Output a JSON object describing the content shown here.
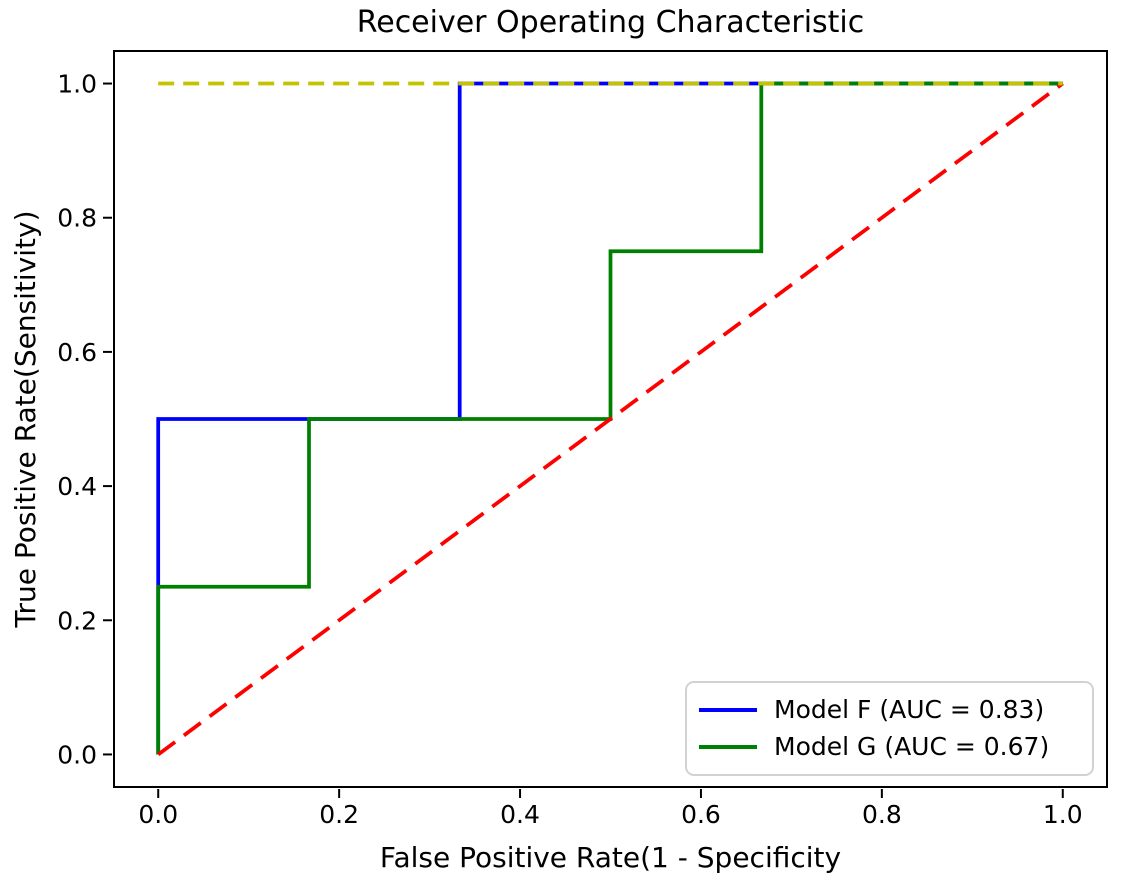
{
  "chart_data": {
    "type": "line",
    "title": "Receiver Operating Characteristic",
    "xlabel": "False Positive Rate(1 - Specificity",
    "ylabel": "True Positive Rate(Sensitivity)",
    "xlim": [
      -0.05,
      1.05
    ],
    "ylim": [
      -0.05,
      1.05
    ],
    "grid": false,
    "x_tick_values": [
      0.0,
      0.2,
      0.4,
      0.6,
      0.8,
      1.0
    ],
    "x_tick_labels": [
      "0.0",
      "0.2",
      "0.4",
      "0.6",
      "0.8",
      "1.0"
    ],
    "y_tick_values": [
      0.0,
      0.2,
      0.4,
      0.6,
      0.8,
      1.0
    ],
    "y_tick_labels": [
      "0.0",
      "0.2",
      "0.4",
      "0.6",
      "0.8",
      "1.0"
    ],
    "series": [
      {
        "id": "model-f-roc-curve",
        "name": "Model F (AUC = 0.83)",
        "color": "#0000ff",
        "linestyle": "solid",
        "x": [
          0,
          0,
          0.3333,
          0.3333,
          1
        ],
        "y": [
          0,
          0.5,
          0.5,
          1,
          1
        ]
      },
      {
        "id": "model-g-roc-curve",
        "name": "Model G (AUC = 0.67)",
        "color": "#008000",
        "linestyle": "solid",
        "x": [
          0,
          0,
          0.1667,
          0.1667,
          0.5,
          0.5,
          0.6667,
          0.6667,
          1
        ],
        "y": [
          0,
          0.25,
          0.25,
          0.5,
          0.5,
          0.75,
          0.75,
          1,
          1
        ]
      },
      {
        "id": "chance-diagonal-line",
        "name": "",
        "color": "#ff0000",
        "linestyle": "dashed",
        "dash": "21 11",
        "x": [
          0,
          1
        ],
        "y": [
          0,
          1
        ]
      },
      {
        "id": "top-reference-line",
        "name": "",
        "color": "#c3c300",
        "linestyle": "dashed",
        "dash": "16 9",
        "x": [
          0,
          1
        ],
        "y": [
          1,
          1
        ]
      }
    ],
    "legend": {
      "position": "lower right",
      "entries": [
        {
          "label": "Model F (AUC = 0.83)",
          "color": "#0000ff"
        },
        {
          "label": "Model G (AUC = 0.67)",
          "color": "#008000"
        }
      ]
    },
    "axis_color": "#000000",
    "background_color": "#ffffff"
  }
}
